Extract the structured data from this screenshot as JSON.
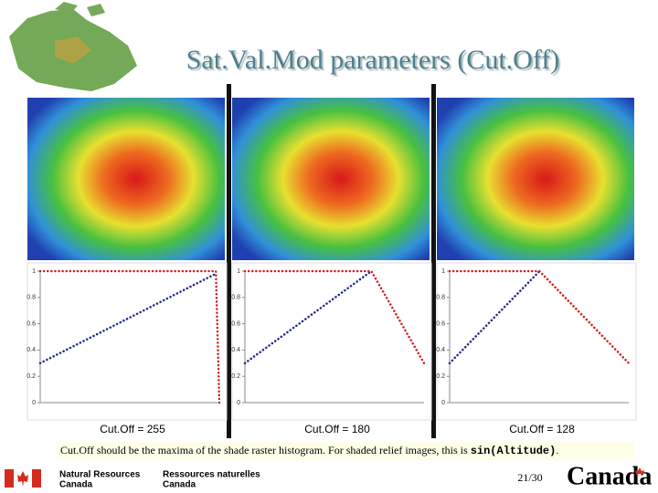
{
  "title": "Sat.Val.Mod parameters (Cut.Off)",
  "chart_data": [
    {
      "type": "line",
      "xlabel": "Cut.Off = 255",
      "x": [
        0,
        250,
        255
      ],
      "xlim": [
        0,
        255
      ],
      "ylim": [
        0,
        1
      ],
      "yticks": [
        0,
        0.2,
        0.4,
        0.6,
        0.8,
        1
      ],
      "series": [
        {
          "color": "#1f2a8c",
          "values": [
            0.3,
            0.98,
            null
          ]
        },
        {
          "color": "#d02020",
          "values": [
            1,
            1,
            0
          ]
        }
      ]
    },
    {
      "type": "line",
      "xlabel": "Cut.Off = 180",
      "x": [
        0,
        180,
        255
      ],
      "xlim": [
        0,
        255
      ],
      "ylim": [
        0,
        1
      ],
      "yticks": [
        0,
        0.2,
        0.4,
        0.6,
        0.8,
        1
      ],
      "series": [
        {
          "color": "#1f2a8c",
          "values": [
            0.3,
            1,
            null
          ]
        },
        {
          "color": "#d02020",
          "values": [
            1,
            1,
            0.3
          ]
        }
      ]
    },
    {
      "type": "line",
      "xlabel": "Cut.Off = 128",
      "x": [
        0,
        128,
        255
      ],
      "xlim": [
        0,
        255
      ],
      "ylim": [
        0,
        1
      ],
      "yticks": [
        0,
        0.2,
        0.4,
        0.6,
        0.8,
        1
      ],
      "series": [
        {
          "color": "#1f2a8c",
          "values": [
            0.3,
            1,
            null
          ]
        },
        {
          "color": "#d02020",
          "values": [
            1,
            1,
            0.3
          ]
        }
      ]
    }
  ],
  "note": {
    "text": "Cut.Off should be the maxima of the shade raster histogram.  For shaded relief images, this is ",
    "code": "sin(Altitude)",
    "end": "."
  },
  "footer": {
    "en": [
      "Natural Resources",
      "Canada"
    ],
    "fr": [
      "Ressources naturelles",
      "Canada"
    ],
    "page": "21/30",
    "wordmark": "Canada"
  }
}
